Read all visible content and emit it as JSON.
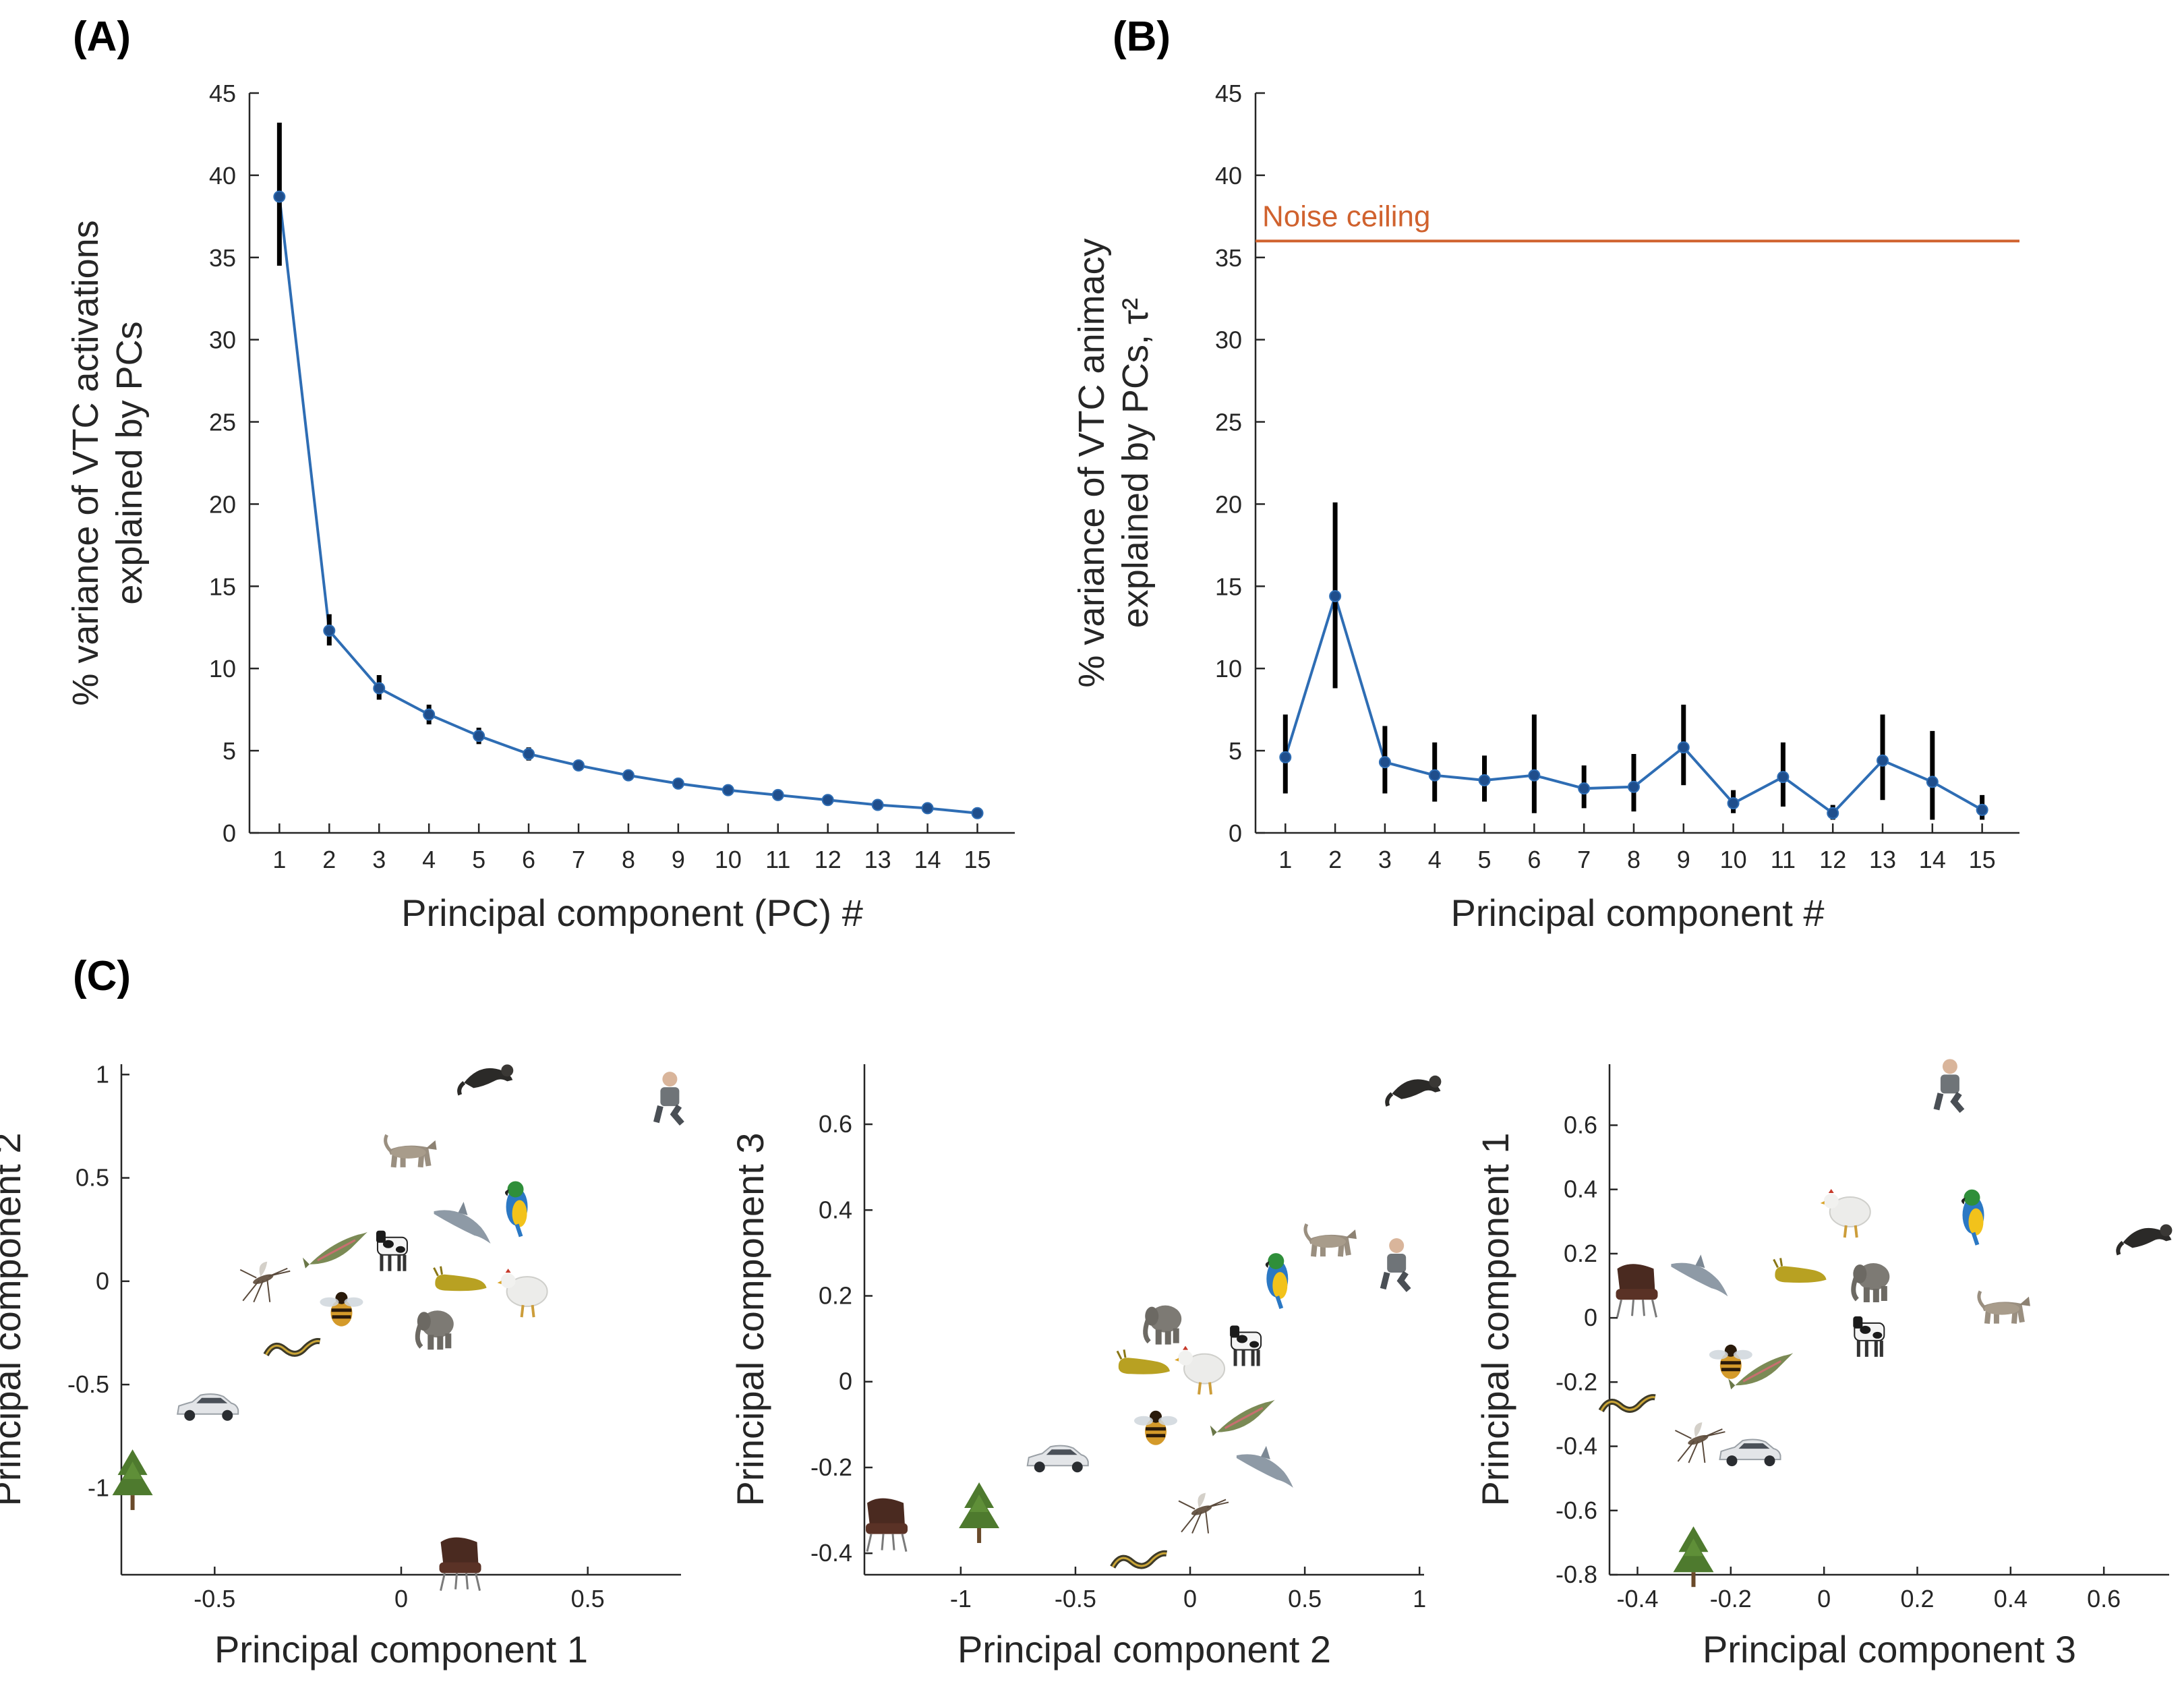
{
  "panels": {
    "a": "(A)",
    "b": "(B)",
    "c": "(C)"
  },
  "chart_data": [
    {
      "id": "A",
      "type": "line",
      "xlabel": "Principal component (PC) #",
      "ylabel_line1": "% variance of VTC activations",
      "ylabel_line2": "explained by PCs",
      "x": [
        1,
        2,
        3,
        4,
        5,
        6,
        7,
        8,
        9,
        10,
        11,
        12,
        13,
        14,
        15
      ],
      "values": [
        38.7,
        12.3,
        8.8,
        7.2,
        5.9,
        4.8,
        4.1,
        3.5,
        3.0,
        2.6,
        2.3,
        2.0,
        1.7,
        1.5,
        1.2
      ],
      "err_low": [
        34.5,
        11.4,
        8.1,
        6.6,
        5.4,
        4.4,
        3.8,
        3.3,
        2.8,
        2.4,
        2.1,
        1.8,
        1.5,
        1.3,
        1.1
      ],
      "err_high": [
        43.2,
        13.3,
        9.6,
        7.8,
        6.4,
        5.2,
        4.4,
        3.7,
        3.2,
        2.8,
        2.5,
        2.2,
        1.9,
        1.7,
        1.4
      ],
      "ylim": [
        0,
        45
      ],
      "yticks": [
        0,
        5,
        10,
        15,
        20,
        25,
        30,
        35,
        40,
        45
      ],
      "xticks": [
        1,
        2,
        3,
        4,
        5,
        6,
        7,
        8,
        9,
        10,
        11,
        12,
        13,
        14,
        15
      ],
      "colors": {
        "line": "#2E6DB4",
        "marker": "#1F4E8C",
        "errbar": "#000000"
      }
    },
    {
      "id": "B",
      "type": "line",
      "xlabel": "Principal component #",
      "ylabel_line1": "% variance of VTC animacy",
      "ylabel_line2": "explained by PCs, τ²",
      "x": [
        1,
        2,
        3,
        4,
        5,
        6,
        7,
        8,
        9,
        10,
        11,
        12,
        13,
        14,
        15
      ],
      "values": [
        4.6,
        14.4,
        4.3,
        3.5,
        3.2,
        3.5,
        2.7,
        2.8,
        5.2,
        1.8,
        3.4,
        1.2,
        4.4,
        3.1,
        1.4
      ],
      "err_low": [
        2.4,
        8.8,
        2.4,
        1.9,
        1.9,
        1.2,
        1.5,
        1.3,
        2.9,
        1.2,
        1.6,
        0.8,
        2.0,
        0.8,
        0.8
      ],
      "err_high": [
        7.2,
        20.1,
        6.5,
        5.5,
        4.7,
        7.2,
        4.1,
        4.8,
        7.8,
        2.6,
        5.5,
        1.7,
        7.2,
        6.2,
        2.3
      ],
      "ylim": [
        0,
        45
      ],
      "yticks": [
        0,
        5,
        10,
        15,
        20,
        25,
        30,
        35,
        40,
        45
      ],
      "xticks": [
        1,
        2,
        3,
        4,
        5,
        6,
        7,
        8,
        9,
        10,
        11,
        12,
        13,
        14,
        15
      ],
      "noise_ceiling": 36.0,
      "noise_label": "Noise ceiling",
      "colors": {
        "line": "#2E6DB4",
        "marker": "#1F4E8C",
        "errbar": "#000000",
        "noise": "#D0622E"
      }
    },
    {
      "id": "C1",
      "type": "scatter",
      "xlabel": "Principal component 1",
      "ylabel": "Principal component 2",
      "xlim": [
        -0.75,
        0.75
      ],
      "ylim": [
        -1.42,
        1.05
      ],
      "xticks": [
        -0.5,
        0,
        0.5
      ],
      "xtick_labels": [
        "-0.5",
        "0",
        "0.5"
      ],
      "yticks": [
        -1,
        -0.5,
        0,
        0.5,
        1
      ],
      "ytick_labels": [
        "-1",
        "-0.5",
        "0",
        "0.5",
        "1"
      ],
      "points": [
        {
          "label": "ferret",
          "x": 0.23,
          "y": 1.0,
          "icon": "ferret-icon"
        },
        {
          "label": "human",
          "x": 0.72,
          "y": 0.88,
          "icon": "human-icon"
        },
        {
          "label": "cat",
          "x": 0.03,
          "y": 0.61,
          "icon": "cat-icon"
        },
        {
          "label": "parrot",
          "x": 0.31,
          "y": 0.36,
          "icon": "parrot-icon"
        },
        {
          "label": "dolphin",
          "x": 0.16,
          "y": 0.28,
          "icon": "dolphin-icon"
        },
        {
          "label": "cow",
          "x": -0.02,
          "y": 0.16,
          "icon": "cow-icon"
        },
        {
          "label": "trout",
          "x": -0.17,
          "y": 0.16,
          "icon": "fish-icon"
        },
        {
          "label": "mosquito",
          "x": -0.37,
          "y": 0.01,
          "icon": "mosquito-icon"
        },
        {
          "label": "slug",
          "x": 0.16,
          "y": 0.0,
          "icon": "slug-icon"
        },
        {
          "label": "chicken",
          "x": 0.33,
          "y": -0.05,
          "icon": "chicken-icon"
        },
        {
          "label": "bee",
          "x": -0.16,
          "y": -0.14,
          "icon": "bee-icon"
        },
        {
          "label": "elephant",
          "x": 0.09,
          "y": -0.22,
          "icon": "elephant-icon"
        },
        {
          "label": "snake",
          "x": -0.29,
          "y": -0.31,
          "icon": "snake-icon"
        },
        {
          "label": "car",
          "x": -0.52,
          "y": -0.61,
          "icon": "car-icon"
        },
        {
          "label": "tree",
          "x": -0.72,
          "y": -0.97,
          "icon": "tree-icon"
        },
        {
          "label": "chair",
          "x": 0.16,
          "y": -1.36,
          "icon": "chair-icon"
        }
      ]
    },
    {
      "id": "C2",
      "type": "scatter",
      "xlabel": "Principal component 2",
      "ylabel": "Principal component 3",
      "xlim": [
        -1.42,
        1.02
      ],
      "ylim": [
        -0.45,
        0.74
      ],
      "xticks": [
        -1,
        -0.5,
        0,
        0.5,
        1
      ],
      "xtick_labels": [
        "-1",
        "-0.5",
        "0",
        "0.5",
        "1"
      ],
      "yticks": [
        -0.4,
        -0.2,
        0,
        0.2,
        0.4,
        0.6
      ],
      "ytick_labels": [
        "-0.4",
        "-0.2",
        "0",
        "0.2",
        "0.4",
        "0.6"
      ],
      "points": [
        {
          "label": "ferret",
          "x": 0.98,
          "y": 0.69,
          "icon": "ferret-icon"
        },
        {
          "label": "cat",
          "x": 0.62,
          "y": 0.32,
          "icon": "cat-icon"
        },
        {
          "label": "human",
          "x": 0.9,
          "y": 0.27,
          "icon": "human-icon"
        },
        {
          "label": "parrot",
          "x": 0.38,
          "y": 0.24,
          "icon": "parrot-icon"
        },
        {
          "label": "elephant",
          "x": -0.12,
          "y": 0.14,
          "icon": "elephant-icon"
        },
        {
          "label": "cow",
          "x": 0.25,
          "y": 0.09,
          "icon": "cow-icon"
        },
        {
          "label": "chicken",
          "x": 0.05,
          "y": 0.03,
          "icon": "chicken-icon"
        },
        {
          "label": "slug",
          "x": -0.2,
          "y": 0.04,
          "icon": "slug-icon"
        },
        {
          "label": "bee",
          "x": -0.15,
          "y": -0.11,
          "icon": "bee-icon"
        },
        {
          "label": "trout",
          "x": 0.24,
          "y": -0.08,
          "icon": "fish-icon"
        },
        {
          "label": "dolphin",
          "x": 0.32,
          "y": -0.2,
          "icon": "dolphin-icon"
        },
        {
          "label": "car",
          "x": -0.58,
          "y": -0.18,
          "icon": "car-icon"
        },
        {
          "label": "mosquito",
          "x": 0.05,
          "y": -0.3,
          "icon": "mosquito-icon"
        },
        {
          "label": "tree",
          "x": -0.92,
          "y": -0.31,
          "icon": "tree-icon"
        },
        {
          "label": "chair",
          "x": -1.32,
          "y": -0.33,
          "icon": "chair-icon"
        },
        {
          "label": "snake",
          "x": -0.22,
          "y": -0.41,
          "icon": "snake-icon"
        }
      ]
    },
    {
      "id": "C3",
      "type": "scatter",
      "xlabel": "Principal component 3",
      "ylabel": "Principal component 1",
      "xlim": [
        -0.46,
        0.74
      ],
      "ylim": [
        -0.8,
        0.79
      ],
      "xticks": [
        -0.4,
        -0.2,
        0,
        0.2,
        0.4,
        0.6
      ],
      "xtick_labels": [
        "-0.4",
        "-0.2",
        "0",
        "0.2",
        "0.4",
        "0.6"
      ],
      "yticks": [
        -0.8,
        -0.6,
        -0.4,
        -0.2,
        0,
        0.2,
        0.4,
        0.6
      ],
      "ytick_labels": [
        "-0.8",
        "-0.6",
        "-0.4",
        "-0.2",
        "0",
        "0.2",
        "0.4",
        "0.6"
      ],
      "points": [
        {
          "label": "human",
          "x": 0.27,
          "y": 0.72,
          "icon": "human-icon"
        },
        {
          "label": "chicken",
          "x": 0.05,
          "y": 0.33,
          "icon": "chicken-icon"
        },
        {
          "label": "parrot",
          "x": 0.32,
          "y": 0.32,
          "icon": "parrot-icon"
        },
        {
          "label": "ferret",
          "x": 0.69,
          "y": 0.26,
          "icon": "ferret-icon"
        },
        {
          "label": "dolphin",
          "x": -0.27,
          "y": 0.13,
          "icon": "dolphin-icon"
        },
        {
          "label": "slug",
          "x": -0.05,
          "y": 0.14,
          "icon": "slug-icon"
        },
        {
          "label": "elephant",
          "x": 0.1,
          "y": 0.12,
          "icon": "elephant-icon"
        },
        {
          "label": "chair",
          "x": -0.4,
          "y": 0.09,
          "icon": "chair-icon"
        },
        {
          "label": "cat",
          "x": 0.39,
          "y": 0.02,
          "icon": "cat-icon"
        },
        {
          "label": "cow",
          "x": 0.1,
          "y": -0.05,
          "icon": "cow-icon"
        },
        {
          "label": "bee",
          "x": -0.2,
          "y": -0.14,
          "icon": "bee-icon"
        },
        {
          "label": "trout",
          "x": -0.13,
          "y": -0.16,
          "icon": "fish-icon"
        },
        {
          "label": "snake",
          "x": -0.42,
          "y": -0.26,
          "icon": "snake-icon"
        },
        {
          "label": "mosquito",
          "x": -0.27,
          "y": -0.38,
          "icon": "mosquito-icon"
        },
        {
          "label": "car",
          "x": -0.16,
          "y": -0.42,
          "icon": "car-icon"
        },
        {
          "label": "tree",
          "x": -0.28,
          "y": -0.75,
          "icon": "tree-icon"
        }
      ]
    }
  ]
}
